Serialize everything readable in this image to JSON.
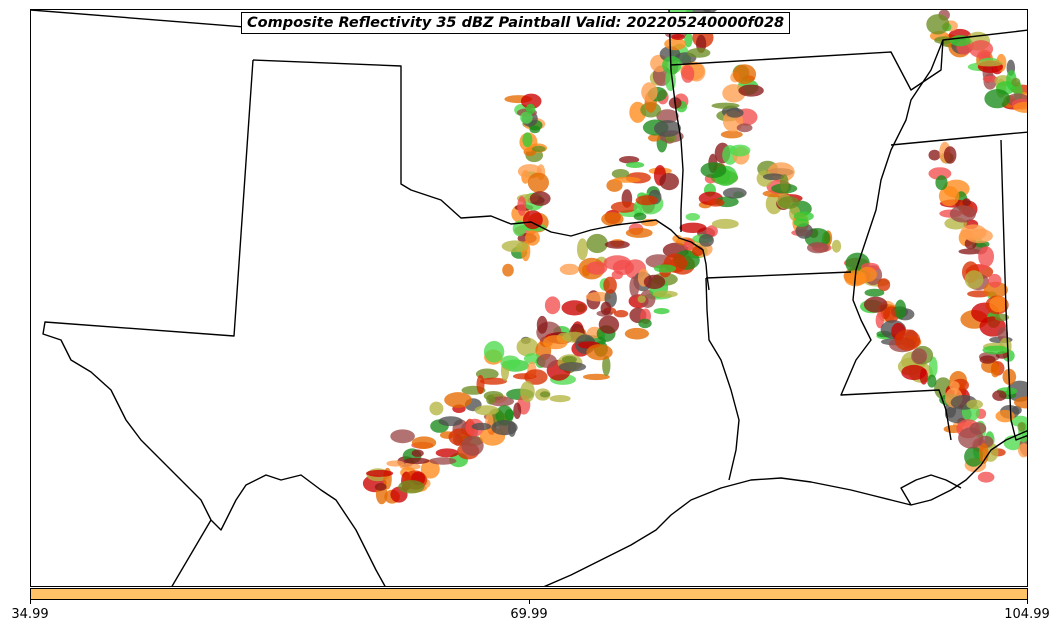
{
  "title": "Composite Reflectivity 35 dBZ Paintball Valid: 202205240000f028",
  "colorbar": {
    "color": "#FFC266",
    "ticks": [
      "34.99",
      "69.99",
      "104.99"
    ]
  },
  "paintball_colors": [
    "#FF9E4D",
    "#FF8A1A",
    "#E66A00",
    "#D93000",
    "#CC0000",
    "#F24D4D",
    "#8B1A1A",
    "#9C4A4A",
    "#505050",
    "#6B8E23",
    "#B5B542",
    "#1A8C1A",
    "#33CC33",
    "#4DDB4D"
  ]
}
